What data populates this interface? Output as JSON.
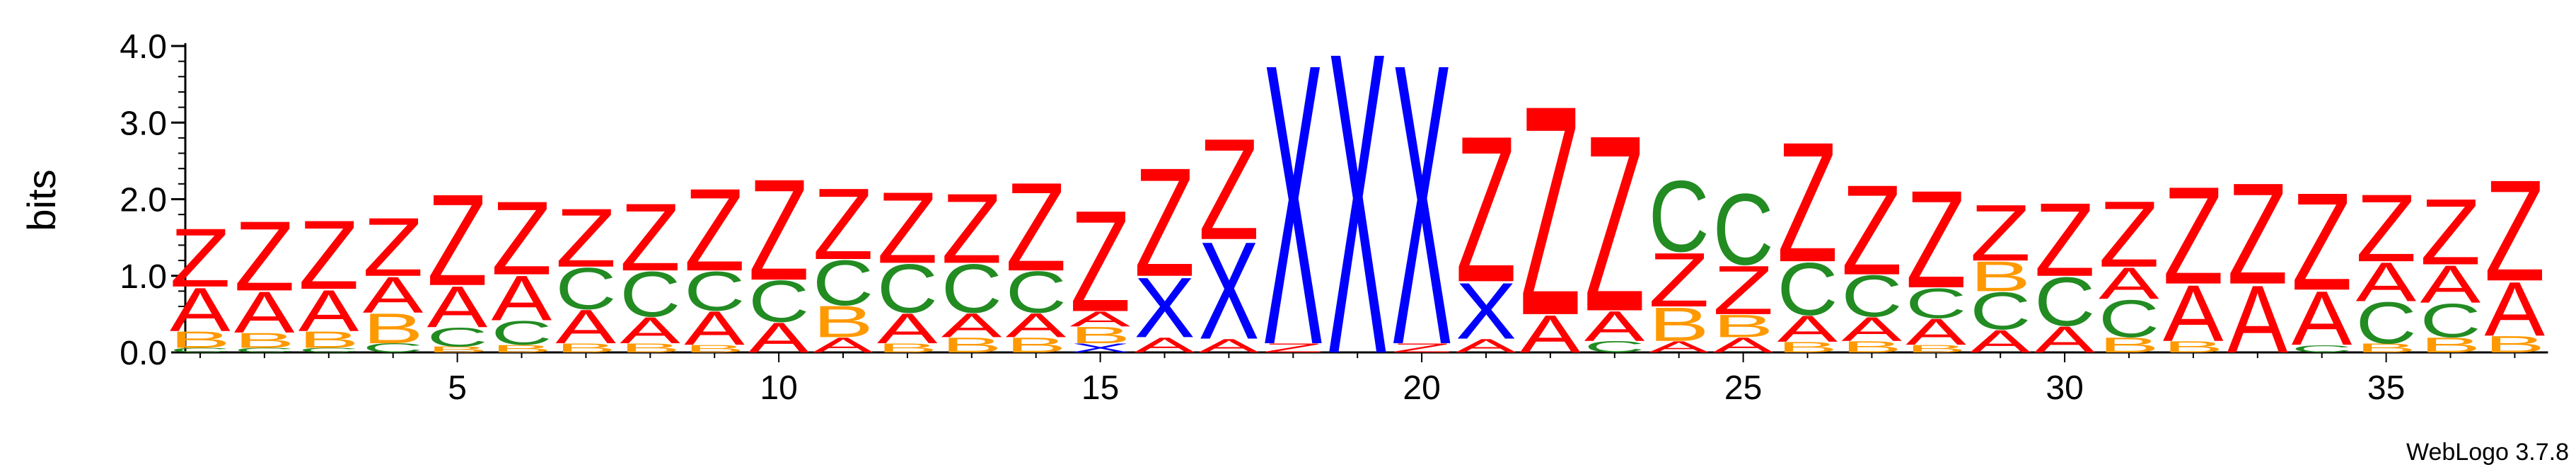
{
  "chart_data": {
    "type": "sequence-logo",
    "ylabel": "bits",
    "ylim": [
      0,
      4.0
    ],
    "yticks": [
      "0.0",
      "1.0",
      "2.0",
      "3.0",
      "4.0"
    ],
    "xticks": [
      5,
      10,
      15,
      20,
      25,
      30,
      35
    ],
    "positions": 37,
    "footer": "WebLogo 3.7.8",
    "colors": {
      "Z": "#ff0000",
      "A": "#ff0000",
      "C": "#228b22",
      "B": "#ff9900",
      "X": "#0000ff"
    },
    "columns": [
      [
        [
          "C",
          0.06
        ],
        [
          "B",
          0.22
        ],
        [
          "A",
          0.58
        ],
        [
          "Z",
          0.78
        ]
      ],
      [
        [
          "C",
          0.06
        ],
        [
          "B",
          0.2
        ],
        [
          "A",
          0.55
        ],
        [
          "Z",
          0.93
        ]
      ],
      [
        [
          "C",
          0.06
        ],
        [
          "B",
          0.22
        ],
        [
          "A",
          0.55
        ],
        [
          "Z",
          0.92
        ]
      ],
      [
        [
          "C",
          0.12
        ],
        [
          "B",
          0.4
        ],
        [
          "A",
          0.48
        ],
        [
          "Z",
          0.78
        ]
      ],
      [
        [
          "B",
          0.08
        ],
        [
          "C",
          0.25
        ],
        [
          "A",
          0.55
        ],
        [
          "Z",
          1.22
        ]
      ],
      [
        [
          "B",
          0.1
        ],
        [
          "C",
          0.32
        ],
        [
          "A",
          0.6
        ],
        [
          "Z",
          0.98
        ]
      ],
      [
        [
          "B",
          0.12
        ],
        [
          "A",
          0.45
        ],
        [
          "C",
          0.55
        ],
        [
          "Z",
          0.78
        ]
      ],
      [
        [
          "B",
          0.12
        ],
        [
          "A",
          0.35
        ],
        [
          "C",
          0.6
        ],
        [
          "Z",
          0.9
        ]
      ],
      [
        [
          "B",
          0.1
        ],
        [
          "A",
          0.45
        ],
        [
          "C",
          0.52
        ],
        [
          "Z",
          1.1
        ]
      ],
      [
        [
          "A",
          0.4
        ],
        [
          "C",
          0.55
        ],
        [
          "Z",
          1.35
        ]
      ],
      [
        [
          "A",
          0.2
        ],
        [
          "B",
          0.42
        ],
        [
          "C",
          0.6
        ],
        [
          "Z",
          0.95
        ]
      ],
      [
        [
          "B",
          0.12
        ],
        [
          "A",
          0.4
        ],
        [
          "C",
          0.65
        ],
        [
          "Z",
          0.95
        ]
      ],
      [
        [
          "B",
          0.2
        ],
        [
          "A",
          0.32
        ],
        [
          "C",
          0.65
        ],
        [
          "Z",
          0.93
        ]
      ],
      [
        [
          "B",
          0.2
        ],
        [
          "A",
          0.32
        ],
        [
          "C",
          0.55
        ],
        [
          "Z",
          1.18
        ]
      ],
      [
        [
          "X",
          0.12
        ],
        [
          "B",
          0.22
        ],
        [
          "A",
          0.2
        ],
        [
          "Z",
          1.35
        ]
      ],
      [
        [
          "A",
          0.2
        ],
        [
          "X",
          0.8
        ],
        [
          "Z",
          1.45
        ]
      ],
      [
        [
          "A",
          0.18
        ],
        [
          "X",
          1.3
        ],
        [
          "Z",
          1.35
        ]
      ],
      [
        [
          "Z",
          0.12
        ],
        [
          "X",
          3.75
        ]
      ],
      [
        [
          "X",
          4.03
        ]
      ],
      [
        [
          "Z",
          0.12
        ],
        [
          "X",
          3.75
        ]
      ],
      [
        [
          "A",
          0.18
        ],
        [
          "X",
          0.75
        ],
        [
          "Z",
          1.95
        ]
      ],
      [
        [
          "A",
          0.5
        ],
        [
          "Z",
          2.8
        ]
      ],
      [
        [
          "C",
          0.15
        ],
        [
          "A",
          0.4
        ],
        [
          "Z",
          2.35
        ]
      ],
      [
        [
          "A",
          0.15
        ],
        [
          "B",
          0.45
        ],
        [
          "Z",
          0.72
        ],
        [
          "C",
          0.95
        ]
      ],
      [
        [
          "A",
          0.2
        ],
        [
          "B",
          0.3
        ],
        [
          "Z",
          0.65
        ],
        [
          "C",
          0.95
        ]
      ],
      [
        [
          "B",
          0.14
        ],
        [
          "A",
          0.35
        ],
        [
          "C",
          0.7
        ],
        [
          "Z",
          1.6
        ]
      ],
      [
        [
          "B",
          0.15
        ],
        [
          "A",
          0.32
        ],
        [
          "C",
          0.55
        ],
        [
          "Z",
          1.2
        ]
      ],
      [
        [
          "B",
          0.1
        ],
        [
          "A",
          0.35
        ],
        [
          "C",
          0.4
        ],
        [
          "Z",
          1.3
        ]
      ],
      [
        [
          "A",
          0.3
        ],
        [
          "C",
          0.5
        ],
        [
          "B",
          0.4
        ],
        [
          "Z",
          0.75
        ]
      ],
      [
        [
          "A",
          0.35
        ],
        [
          "C",
          0.65
        ],
        [
          "Z",
          0.98
        ]
      ],
      [
        [
          "B",
          0.2
        ],
        [
          "C",
          0.5
        ],
        [
          "A",
          0.42
        ],
        [
          "Z",
          0.88
        ]
      ],
      [
        [
          "B",
          0.15
        ],
        [
          "A",
          0.75
        ],
        [
          "Z",
          1.3
        ]
      ],
      [
        [
          "A",
          0.9
        ],
        [
          "Z",
          1.35
        ]
      ],
      [
        [
          "C",
          0.1
        ],
        [
          "A",
          0.72
        ],
        [
          "Z",
          1.3
        ]
      ],
      [
        [
          "B",
          0.12
        ],
        [
          "C",
          0.55
        ],
        [
          "A",
          0.52
        ],
        [
          "Z",
          0.9
        ]
      ],
      [
        [
          "B",
          0.2
        ],
        [
          "C",
          0.45
        ],
        [
          "A",
          0.5
        ],
        [
          "Z",
          0.88
        ]
      ],
      [
        [
          "B",
          0.22
        ],
        [
          "A",
          0.72
        ],
        [
          "Z",
          1.35
        ]
      ]
    ]
  }
}
